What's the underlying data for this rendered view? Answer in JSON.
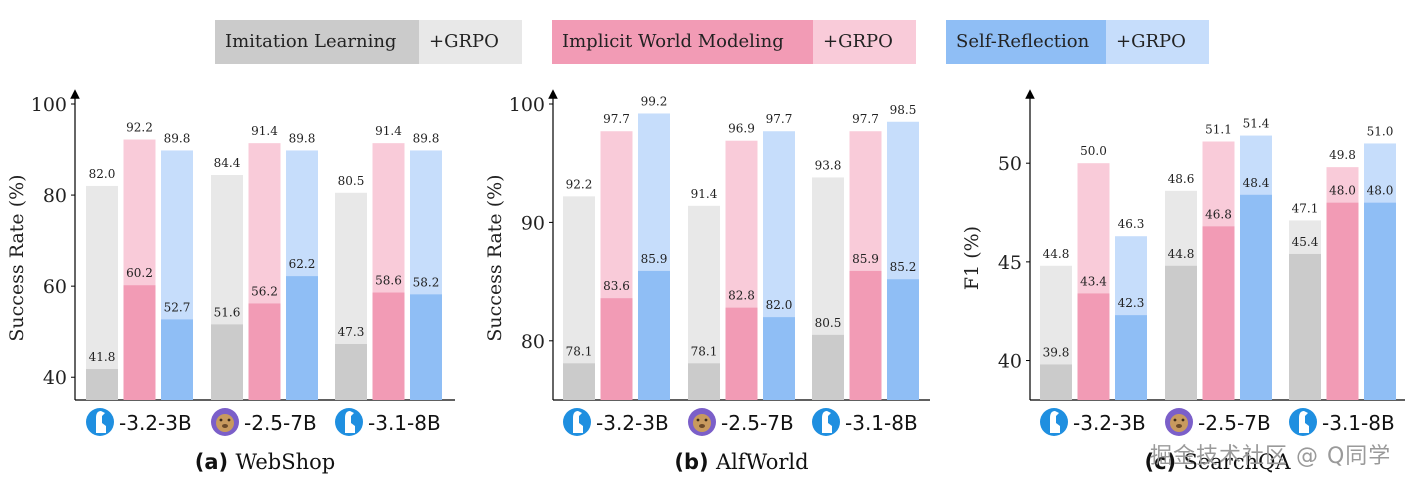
{
  "legend": {
    "groups": [
      {
        "label": "Imitation Learning",
        "grpo_label": "+GRPO",
        "base_color": "#cbcbcb",
        "grpo_color": "#e8e8e8"
      },
      {
        "label": "Implicit World Modeling",
        "grpo_label": "+GRPO",
        "base_color": "#f29bb5",
        "grpo_color": "#f9cbd9"
      },
      {
        "label": "Self-Reflection",
        "grpo_label": "+GRPO",
        "base_color": "#8fbef5",
        "grpo_color": "#c6ddfb"
      }
    ]
  },
  "models": [
    {
      "icon": "llama-icon",
      "label": "-3.2-3B"
    },
    {
      "icon": "qwen-icon",
      "label": "-2.5-7B"
    },
    {
      "icon": "llama-icon",
      "label": "-3.1-8B"
    }
  ],
  "chart_data": [
    {
      "type": "bar",
      "panel_tag": "(a)",
      "title": "WebShop",
      "ylabel": "Success Rate (%)",
      "xlabel": "",
      "ylim": [
        35,
        100
      ],
      "yticks": [
        40,
        60,
        80,
        100
      ],
      "categories": [
        "-3.2-3B",
        "-2.5-7B",
        "-3.1-8B"
      ],
      "series": [
        {
          "name": "Imitation Learning",
          "values": [
            41.8,
            51.6,
            47.3
          ],
          "grpo_values": [
            82.0,
            84.4,
            80.5
          ]
        },
        {
          "name": "Implicit World Modeling",
          "values": [
            60.2,
            56.2,
            58.6
          ],
          "grpo_values": [
            92.2,
            91.4,
            91.4
          ]
        },
        {
          "name": "Self-Reflection",
          "values": [
            52.7,
            62.2,
            58.2
          ],
          "grpo_values": [
            89.8,
            89.8,
            89.8
          ]
        }
      ]
    },
    {
      "type": "bar",
      "panel_tag": "(b)",
      "title": "AlfWorld",
      "ylabel": "Success Rate (%)",
      "xlabel": "",
      "ylim": [
        75,
        100
      ],
      "yticks": [
        80,
        90,
        100
      ],
      "categories": [
        "-3.2-3B",
        "-2.5-7B",
        "-3.1-8B"
      ],
      "series": [
        {
          "name": "Imitation Learning",
          "values": [
            78.1,
            78.1,
            80.5
          ],
          "grpo_values": [
            92.2,
            91.4,
            93.8
          ]
        },
        {
          "name": "Implicit World Modeling",
          "values": [
            83.6,
            82.8,
            85.9
          ],
          "grpo_values": [
            97.7,
            96.9,
            97.7
          ]
        },
        {
          "name": "Self-Reflection",
          "values": [
            85.9,
            82.0,
            85.2
          ],
          "grpo_values": [
            99.2,
            97.7,
            98.5
          ]
        }
      ]
    },
    {
      "type": "bar",
      "panel_tag": "(c)",
      "title": "SearchQA",
      "ylabel": "F1 (%)",
      "xlabel": "",
      "ylim": [
        38,
        53
      ],
      "yticks": [
        40,
        45,
        50
      ],
      "categories": [
        "-3.2-3B",
        "-2.5-7B",
        "-3.1-8B"
      ],
      "series": [
        {
          "name": "Imitation Learning",
          "values": [
            39.8,
            44.8,
            45.4
          ],
          "grpo_values": [
            44.8,
            48.6,
            47.1
          ]
        },
        {
          "name": "Implicit World Modeling",
          "values": [
            43.4,
            46.8,
            48.0
          ],
          "grpo_values": [
            50.0,
            51.1,
            49.8
          ]
        },
        {
          "name": "Self-Reflection",
          "values": [
            42.3,
            48.4,
            48.0
          ],
          "grpo_values": [
            46.3,
            51.4,
            51.0
          ]
        }
      ]
    }
  ],
  "watermark": "掘金技术社区 @ Q同学"
}
